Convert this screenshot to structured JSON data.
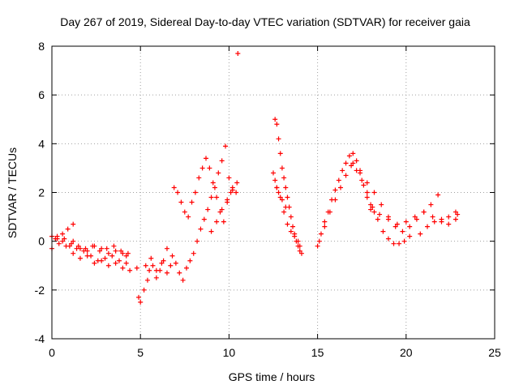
{
  "chart_data": {
    "type": "scatter",
    "title": "Day 267 of 2019, Sidereal Day-to-day VTEC variation (SDTVAR) for receiver gaia",
    "xlabel": "GPS time / hours",
    "ylabel": "SDTVAR / TECUs",
    "xlim": [
      0,
      25
    ],
    "ylim": [
      -4,
      8
    ],
    "xticks": [
      0,
      5,
      10,
      15,
      20,
      25
    ],
    "yticks": [
      -4,
      -2,
      0,
      2,
      4,
      6,
      8
    ],
    "grid": true,
    "marker": "+",
    "colors": {
      "series": "#ff0000",
      "grid": "#a0a0a0",
      "axis": "#000000"
    },
    "series": [
      {
        "name": "SDTVAR",
        "x": [
          0.0,
          0.3,
          0.6,
          0.9,
          1.2,
          0.0,
          0.4,
          0.8,
          1.2,
          1.6,
          2.0,
          2.4,
          2.8,
          3.2,
          3.6,
          4.0,
          4.2,
          0.2,
          0.6,
          1.0,
          1.4,
          1.8,
          2.2,
          2.6,
          3.0,
          3.4,
          3.8,
          4.2,
          0.3,
          0.7,
          1.1,
          1.5,
          1.9,
          2.3,
          2.7,
          3.1,
          3.5,
          3.9,
          4.3,
          1.2,
          1.6,
          2.0,
          2.4,
          2.8,
          3.2,
          3.6,
          4.0,
          4.4,
          4.8,
          4.9,
          5.0,
          5.2,
          5.4,
          5.5,
          5.7,
          5.9,
          6.1,
          6.3,
          6.5,
          6.7,
          5.3,
          5.6,
          5.9,
          6.2,
          6.5,
          6.8,
          7.0,
          7.2,
          7.4,
          7.6,
          7.8,
          8.0,
          6.9,
          7.1,
          7.3,
          7.5,
          7.7,
          7.9,
          8.1,
          8.3,
          8.5,
          8.7,
          8.9,
          9.1,
          9.3,
          9.5,
          9.7,
          9.9,
          10.1,
          8.2,
          8.4,
          8.6,
          8.8,
          9.0,
          9.2,
          9.4,
          9.6,
          9.8,
          10.0,
          10.2,
          10.4,
          9.0,
          9.3,
          9.6,
          9.9,
          10.2,
          10.45,
          10.5,
          12.6,
          12.7,
          12.8,
          12.9,
          13.0,
          13.1,
          13.2,
          13.3,
          13.4,
          13.5,
          13.6,
          13.7,
          13.8,
          13.9,
          14.0,
          14.1,
          12.7,
          12.9,
          13.1,
          13.3,
          13.5,
          13.7,
          13.9,
          14.0,
          12.5,
          12.6,
          12.7,
          12.8,
          13.0,
          13.2,
          15.0,
          15.2,
          15.4,
          15.6,
          15.8,
          16.0,
          16.2,
          16.4,
          16.6,
          16.8,
          17.0,
          17.2,
          17.4,
          17.6,
          17.8,
          18.0,
          18.2,
          15.1,
          15.4,
          15.7,
          16.0,
          16.3,
          16.6,
          16.9,
          17.2,
          17.5,
          17.8,
          18.1,
          18.4,
          18.7,
          19.0,
          19.3,
          19.6,
          19.9,
          20.2,
          17.0,
          17.4,
          17.8,
          18.2,
          18.6,
          19.0,
          19.4,
          19.8,
          20.2,
          20.6,
          21.0,
          21.4,
          21.8,
          18.0,
          18.5,
          19.0,
          19.5,
          20.0,
          20.5,
          21.0,
          21.5,
          22.0,
          22.4,
          22.8,
          20.8,
          21.2,
          21.6,
          22.0,
          22.4,
          22.8,
          22.9
        ],
        "y": [
          -0.3,
          0.1,
          0.3,
          0.5,
          0.7,
          0.2,
          -0.1,
          -0.2,
          0.0,
          -0.3,
          -0.4,
          -0.2,
          -0.3,
          -0.5,
          -0.4,
          -0.5,
          -0.6,
          0.1,
          0.0,
          -0.2,
          -0.3,
          -0.4,
          -0.6,
          -0.8,
          -0.7,
          -0.6,
          -0.8,
          -0.9,
          0.2,
          0.1,
          -0.1,
          -0.2,
          -0.3,
          -0.2,
          -0.4,
          -0.3,
          -0.2,
          -0.4,
          -0.5,
          -0.5,
          -0.7,
          -0.6,
          -0.9,
          -0.8,
          -1.0,
          -0.9,
          -1.1,
          -1.2,
          -1.1,
          -2.3,
          -2.5,
          -2.0,
          -1.6,
          -1.2,
          -1.0,
          -1.5,
          -1.2,
          -0.8,
          -1.3,
          -1.0,
          -1.0,
          -0.7,
          -1.2,
          -0.9,
          -0.3,
          -0.6,
          -0.9,
          -1.3,
          -1.6,
          -1.1,
          -0.8,
          -0.5,
          2.2,
          2.0,
          1.6,
          1.2,
          1.0,
          1.6,
          2.0,
          2.6,
          3.0,
          3.4,
          3.0,
          2.4,
          1.8,
          1.2,
          0.8,
          1.6,
          2.0,
          0.0,
          0.5,
          0.9,
          1.3,
          1.8,
          2.2,
          2.8,
          3.3,
          3.9,
          2.6,
          2.2,
          2.0,
          0.4,
          0.8,
          1.3,
          1.7,
          2.1,
          2.4,
          7.7,
          5.0,
          4.8,
          4.2,
          3.6,
          3.0,
          2.6,
          2.2,
          1.8,
          1.4,
          1.0,
          0.6,
          0.3,
          0.0,
          -0.2,
          -0.4,
          -0.5,
          2.2,
          1.8,
          1.2,
          0.7,
          0.4,
          0.2,
          0.0,
          -0.2,
          2.8,
          2.5,
          2.2,
          2.0,
          1.7,
          1.4,
          -0.2,
          0.3,
          0.8,
          1.2,
          1.7,
          2.1,
          2.5,
          2.9,
          3.2,
          3.5,
          3.6,
          3.3,
          2.8,
          2.3,
          1.8,
          1.5,
          1.2,
          0.0,
          0.6,
          1.2,
          1.7,
          2.2,
          2.7,
          3.1,
          2.9,
          2.5,
          2.0,
          1.4,
          0.9,
          0.4,
          0.1,
          -0.1,
          -0.1,
          0.0,
          0.2,
          3.2,
          2.9,
          2.4,
          2.0,
          1.5,
          1.0,
          0.6,
          0.4,
          0.6,
          0.9,
          1.2,
          1.5,
          1.9,
          1.3,
          1.1,
          0.9,
          0.7,
          0.8,
          1.0,
          1.2,
          1.0,
          0.8,
          1.0,
          1.2,
          0.3,
          0.6,
          0.8,
          0.9,
          0.7,
          0.9,
          1.1
        ]
      }
    ]
  }
}
